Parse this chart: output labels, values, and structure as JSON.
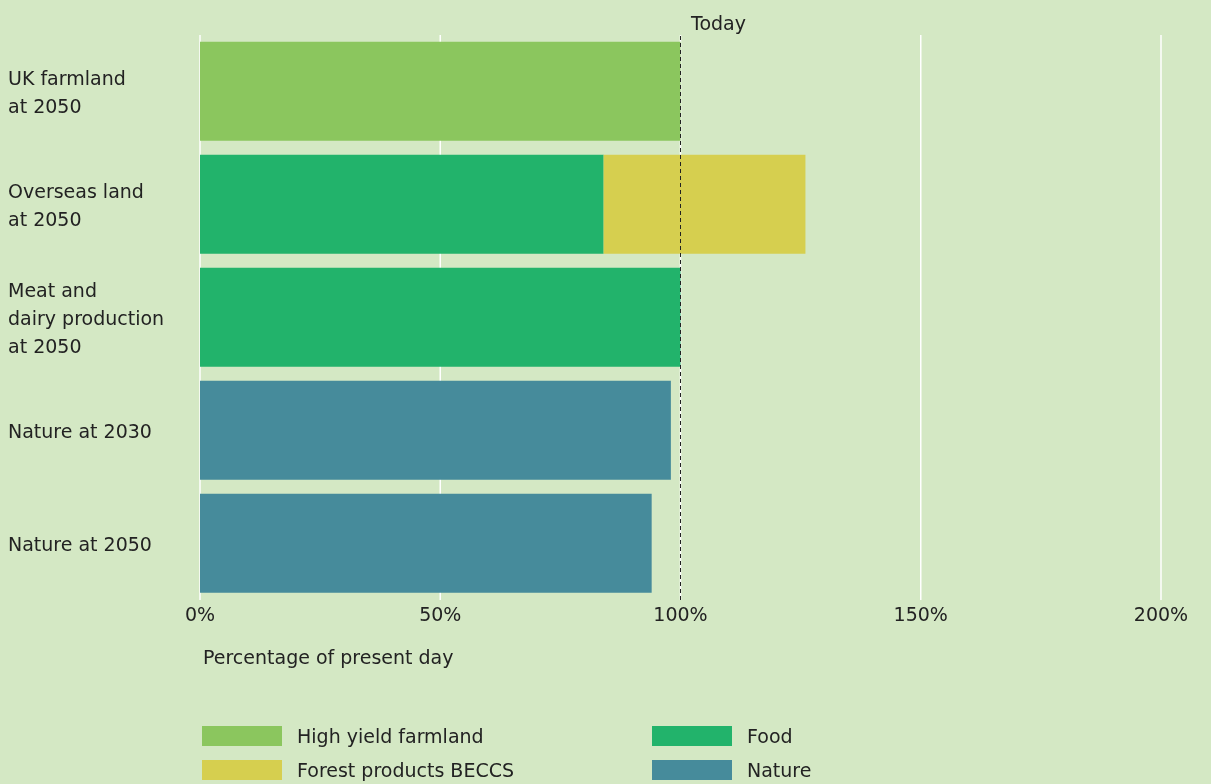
{
  "chart_data": {
    "type": "bar",
    "orientation": "horizontal",
    "stacked": true,
    "xlabel": "Percentage of present day",
    "categories": [
      "UK farmland\nat 2050",
      "Overseas land\nat 2050",
      "Meat and\ndairy production\nat 2050",
      "Nature at 2030",
      "Nature at 2050"
    ],
    "series": [
      {
        "name": "High yield farmland",
        "color": "#8bc65e",
        "values": [
          100,
          null,
          null,
          null,
          null
        ]
      },
      {
        "name": "Food",
        "color": "#22b36b",
        "values": [
          null,
          84,
          100,
          null,
          null
        ]
      },
      {
        "name": "Forest products BECCS",
        "color": "#d6cf4f",
        "values": [
          null,
          42,
          null,
          null,
          null
        ]
      },
      {
        "name": "Nature",
        "color": "#468b9b",
        "values": [
          null,
          null,
          null,
          98,
          94
        ]
      }
    ],
    "xlim": [
      0,
      200
    ],
    "xticks": [
      {
        "value": 0,
        "label": "0%"
      },
      {
        "value": 50,
        "label": "50%"
      },
      {
        "value": 100,
        "label": "100%"
      },
      {
        "value": 150,
        "label": "150%"
      },
      {
        "value": 200,
        "label": "200%"
      }
    ],
    "ref_lines": [
      {
        "axis": "x",
        "value": 100,
        "label": "Today",
        "line_style": "dashed",
        "color": "#222222"
      }
    ],
    "grid": "x",
    "legend": "bottom"
  }
}
